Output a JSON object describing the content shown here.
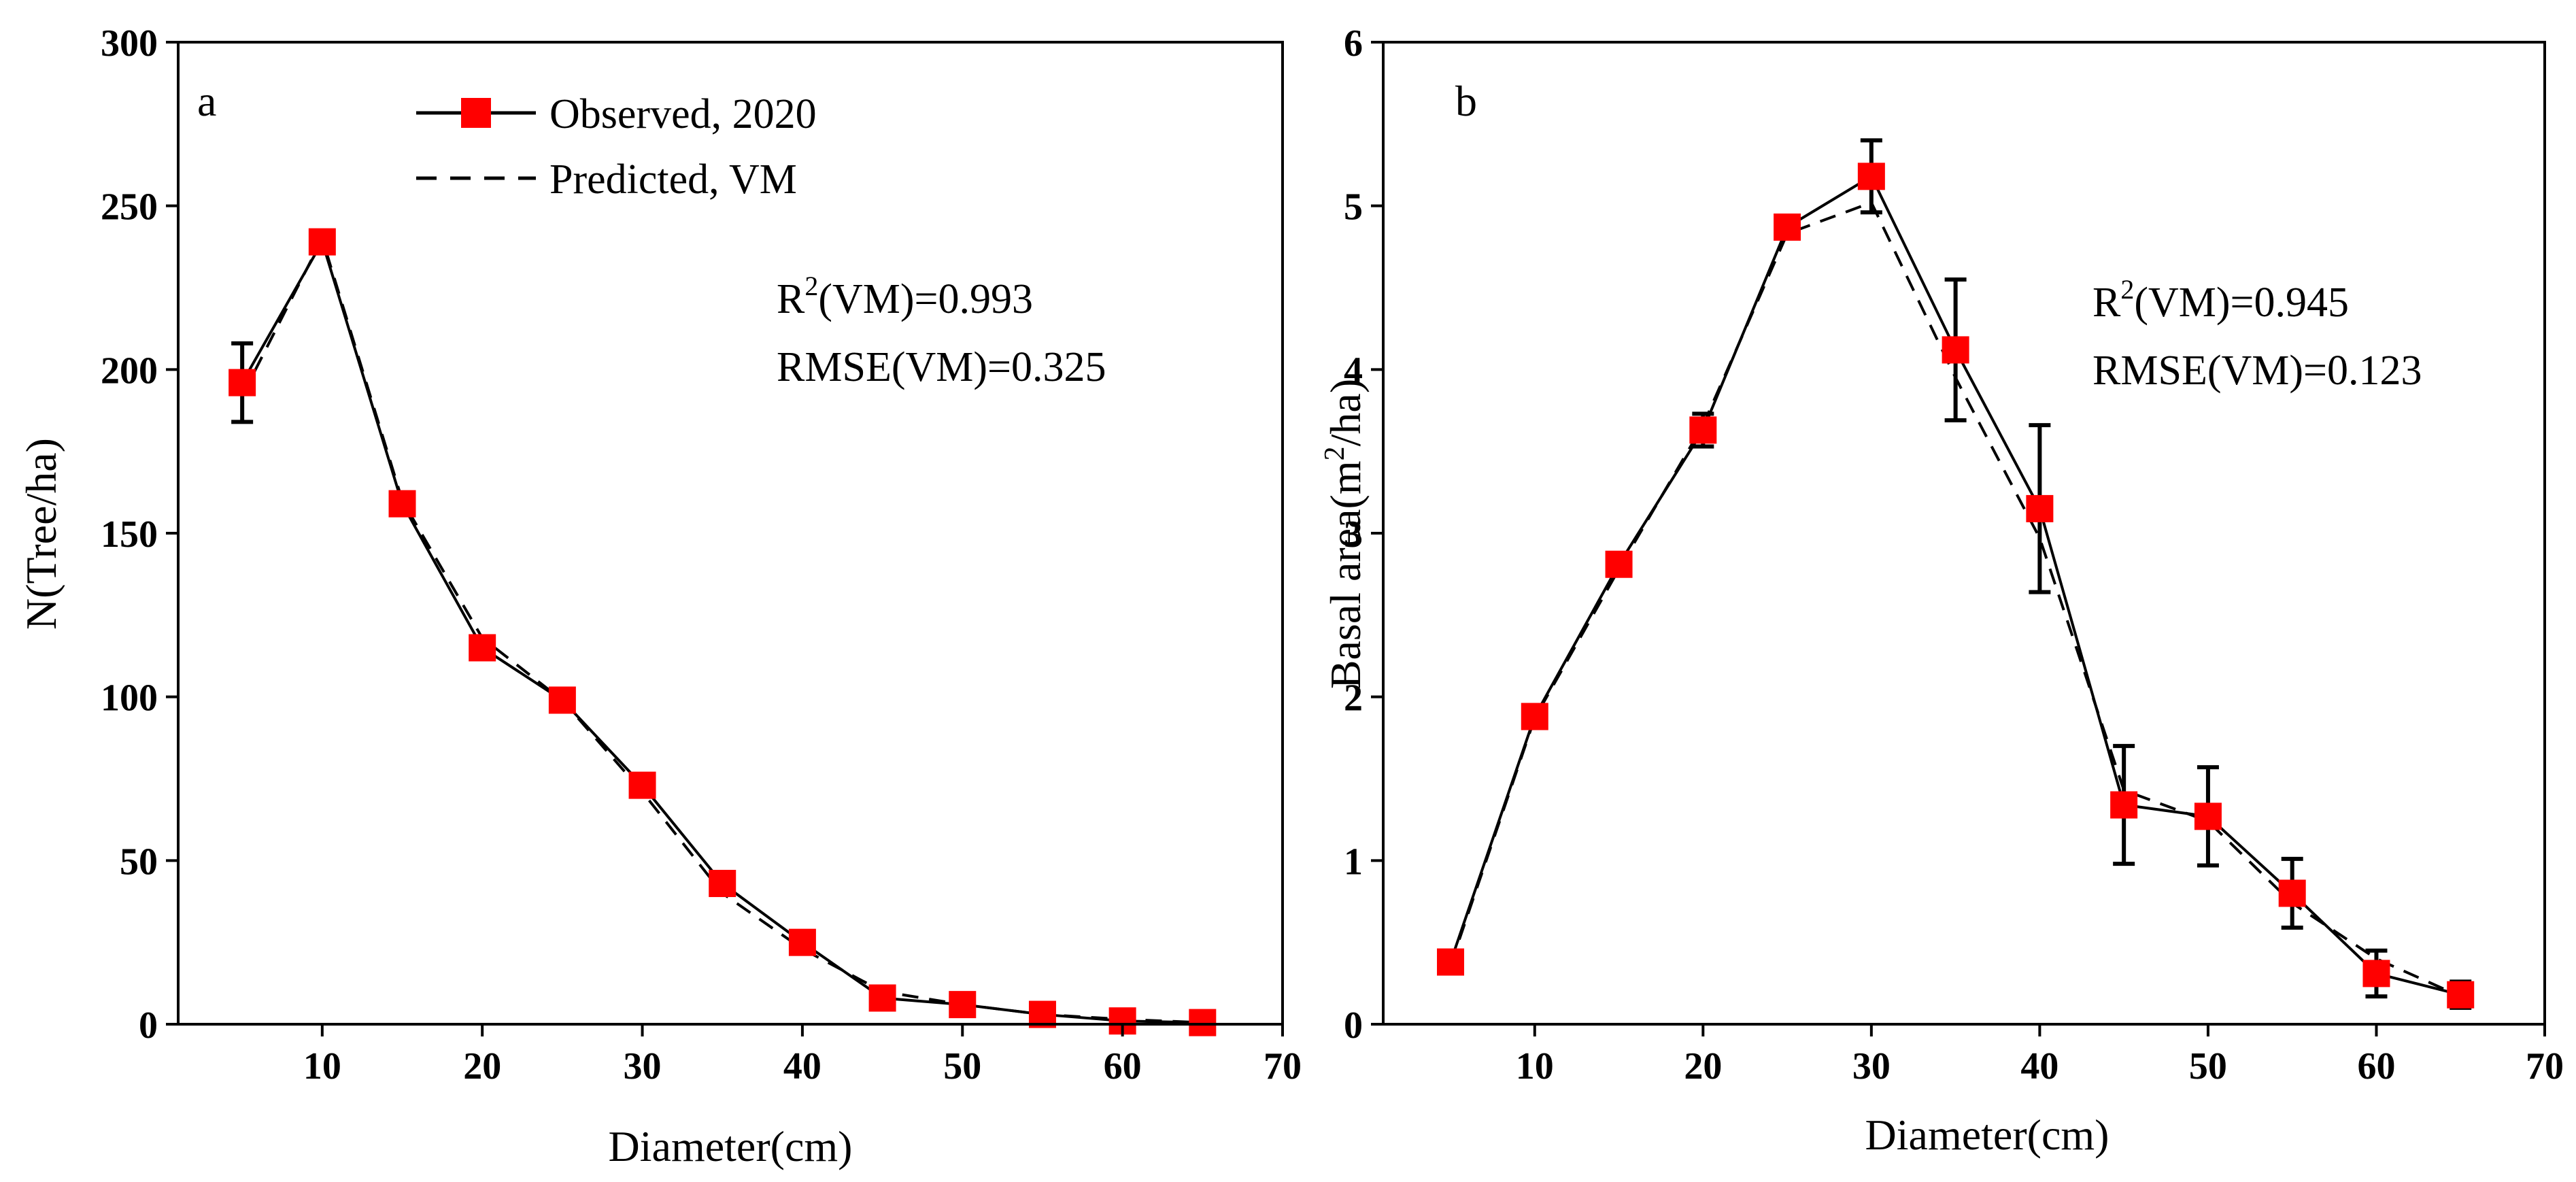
{
  "colors": {
    "observed_marker": "#ff0000",
    "line": "#000000",
    "background": "#ffffff"
  },
  "legend": {
    "observed": "Observed, 2020",
    "predicted": "Predicted, VM"
  },
  "chart_data": [
    {
      "type": "line",
      "panel": "a",
      "xlabel": "Diameter(cm)",
      "ylabel": "N(Tree/ha)",
      "xlim": [
        1,
        70
      ],
      "ylim": [
        0,
        300
      ],
      "xticks": [
        10,
        20,
        30,
        40,
        50,
        60,
        70
      ],
      "yticks": [
        0,
        50,
        100,
        150,
        200,
        250,
        300
      ],
      "stats": {
        "r2_prefix": "R",
        "r2_exp": "2",
        "r2_suffix": "(VM)=0.993",
        "rmse": "RMSE(VM)=0.325"
      },
      "x": [
        5,
        10,
        15,
        20,
        25,
        30,
        35,
        40,
        45,
        50,
        55,
        60,
        65
      ],
      "series": [
        {
          "name": "Observed, 2020",
          "style": "solid-square",
          "values": [
            196,
            239,
            159,
            115,
            99,
            73,
            43,
            25,
            8,
            6,
            3,
            1,
            0.5
          ],
          "errors": [
            12,
            3,
            3,
            3,
            3,
            3,
            3,
            3,
            3,
            3,
            2,
            1,
            1
          ]
        },
        {
          "name": "Predicted, VM",
          "style": "dashed",
          "values": [
            192,
            240,
            160,
            118,
            99,
            71,
            40,
            23,
            10,
            6,
            3,
            1.5,
            0.5
          ]
        }
      ]
    },
    {
      "type": "line",
      "panel": "b",
      "xlabel": "Diameter(cm)",
      "ylabel": "Basal area(m2/ha)",
      "ylabel_parts": {
        "before": "Basal area(m",
        "sup": "2",
        "after": "/ha)"
      },
      "xlim": [
        1,
        70
      ],
      "ylim": [
        0,
        6
      ],
      "xticks": [
        10,
        20,
        30,
        40,
        50,
        60,
        70
      ],
      "yticks": [
        0,
        1,
        2,
        3,
        4,
        5,
        6
      ],
      "stats": {
        "r2_prefix": "R",
        "r2_exp": "2",
        "r2_suffix": "(VM)=0.945",
        "rmse": "RMSE(VM)=0.123"
      },
      "x": [
        5,
        10,
        15,
        20,
        25,
        30,
        35,
        40,
        45,
        50,
        55,
        60,
        65
      ],
      "series": [
        {
          "name": "Observed, 2020",
          "style": "solid-square",
          "values": [
            0.38,
            1.88,
            2.81,
            3.63,
            4.87,
            5.18,
            4.12,
            3.15,
            1.34,
            1.27,
            0.8,
            0.31,
            0.18
          ],
          "errors": [
            0.05,
            0.05,
            0.06,
            0.1,
            0.05,
            0.22,
            0.43,
            0.51,
            0.36,
            0.3,
            0.21,
            0.14,
            0.08
          ]
        },
        {
          "name": "Predicted, VM",
          "style": "dashed",
          "values": [
            0.36,
            1.87,
            2.78,
            3.66,
            4.83,
            5.02,
            3.95,
            2.97,
            1.43,
            1.24,
            0.74,
            0.4,
            0.17
          ]
        }
      ]
    }
  ]
}
